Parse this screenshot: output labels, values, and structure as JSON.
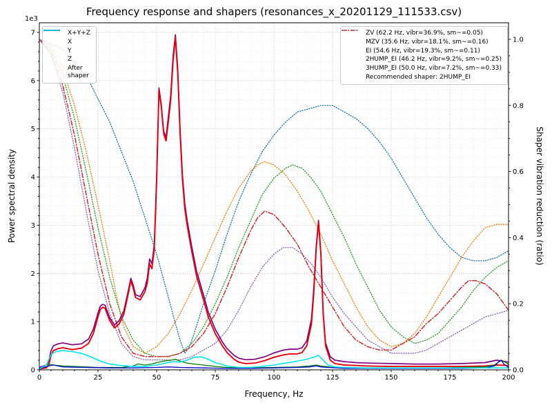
{
  "chart_data": {
    "type": "line",
    "title": "Frequency response and shapers (resonances_x_20201129_111533.csv)",
    "xlabel": "Frequency, Hz",
    "ylabel_left": "Power spectral density",
    "ylabel_right": "Shaper vibration reduction (ratio)",
    "y_left_offset_text": "1e3",
    "x_range": [
      0,
      200
    ],
    "y_left_display_max": 7,
    "y_left_scale_max": 7.2,
    "y_right_display_max": 1.0,
    "y_right_scale_max": 1.05,
    "x_ticks": [
      0,
      25,
      50,
      75,
      100,
      125,
      150,
      175,
      200
    ],
    "y_left_ticks": [
      0,
      1,
      2,
      3,
      4,
      5,
      6,
      7
    ],
    "y_right_ticks": [
      0.0,
      0.2,
      0.4,
      0.6,
      0.8,
      1.0
    ],
    "grid": true,
    "legend_left_position": "upper left",
    "legend_right_position": "upper right",
    "recommended_shaper": "2HUMP_EI",
    "legend_note": "Recommended shaper: 2HUMP_EI",
    "psd_units": "1e3",
    "psd_series": [
      {
        "name": "sum",
        "label": "X+Y+Z",
        "color": "#800080",
        "style": "solid",
        "width": 1.7,
        "axis": "left",
        "x": [
          0,
          3,
          4,
          5,
          6,
          8,
          10,
          14,
          18,
          21,
          23,
          25,
          26,
          27,
          28,
          30,
          32,
          34,
          36,
          38,
          39,
          40,
          41,
          43,
          45,
          46,
          47,
          48,
          49,
          50,
          51,
          52,
          53,
          54,
          55,
          56,
          57,
          58,
          59,
          60,
          61,
          62,
          63,
          65,
          67,
          70,
          72,
          75,
          78,
          80,
          83,
          85,
          88,
          92,
          96,
          100,
          104,
          107,
          110,
          112,
          114,
          116,
          117,
          118,
          119,
          120,
          121,
          122,
          124,
          126,
          130,
          135,
          140,
          150,
          160,
          170,
          180,
          190,
          195,
          200
        ],
        "y": [
          0.05,
          0.1,
          0.18,
          0.4,
          0.5,
          0.54,
          0.56,
          0.52,
          0.54,
          0.64,
          0.84,
          1.18,
          1.32,
          1.36,
          1.34,
          1.08,
          0.93,
          1.02,
          1.22,
          1.66,
          1.9,
          1.76,
          1.56,
          1.52,
          1.7,
          1.9,
          2.3,
          2.2,
          2.6,
          4.0,
          5.85,
          5.5,
          4.95,
          4.82,
          5.25,
          5.7,
          6.5,
          6.95,
          6.25,
          5.0,
          4.05,
          3.45,
          3.1,
          2.55,
          2.05,
          1.55,
          1.2,
          0.84,
          0.58,
          0.44,
          0.3,
          0.24,
          0.21,
          0.22,
          0.27,
          0.35,
          0.41,
          0.43,
          0.43,
          0.46,
          0.6,
          1.05,
          1.7,
          2.55,
          3.1,
          2.45,
          1.2,
          0.56,
          0.27,
          0.2,
          0.17,
          0.15,
          0.14,
          0.13,
          0.12,
          0.12,
          0.13,
          0.15,
          0.2,
          0.16
        ]
      },
      {
        "name": "x",
        "label": "X",
        "color": "#e8000b",
        "style": "solid",
        "width": 1.9,
        "axis": "left",
        "x": [
          0,
          3,
          4,
          5,
          6,
          8,
          10,
          14,
          18,
          21,
          23,
          25,
          26,
          27,
          28,
          30,
          32,
          34,
          36,
          38,
          39,
          40,
          41,
          43,
          45,
          46,
          47,
          48,
          49,
          50,
          51,
          52,
          53,
          54,
          55,
          56,
          57,
          58,
          59,
          60,
          61,
          62,
          63,
          65,
          67,
          70,
          72,
          75,
          78,
          80,
          83,
          85,
          88,
          92,
          96,
          100,
          104,
          107,
          110,
          112,
          114,
          116,
          117,
          118,
          119,
          120,
          121,
          122,
          124,
          126,
          130,
          135,
          140,
          150,
          160,
          170,
          180,
          190,
          195,
          200
        ],
        "y": [
          0.02,
          0.04,
          0.1,
          0.3,
          0.4,
          0.44,
          0.46,
          0.42,
          0.45,
          0.55,
          0.75,
          1.1,
          1.25,
          1.3,
          1.28,
          1.02,
          0.87,
          0.95,
          1.15,
          1.6,
          1.85,
          1.7,
          1.5,
          1.45,
          1.62,
          1.8,
          2.2,
          2.1,
          2.5,
          3.9,
          5.8,
          5.45,
          4.9,
          4.75,
          5.15,
          5.6,
          6.4,
          6.9,
          6.15,
          4.9,
          3.95,
          3.35,
          3.0,
          2.45,
          1.95,
          1.45,
          1.1,
          0.75,
          0.5,
          0.36,
          0.22,
          0.16,
          0.13,
          0.14,
          0.19,
          0.26,
          0.31,
          0.33,
          0.33,
          0.36,
          0.5,
          0.95,
          1.6,
          2.5,
          3.05,
          2.4,
          1.15,
          0.5,
          0.2,
          0.13,
          0.1,
          0.09,
          0.08,
          0.07,
          0.07,
          0.07,
          0.07,
          0.08,
          0.1,
          0.09
        ]
      },
      {
        "name": "y",
        "label": "Y",
        "color": "#008000",
        "style": "solid",
        "width": 1.3,
        "axis": "left",
        "x": [
          0,
          4,
          6,
          10,
          15,
          20,
          25,
          30,
          35,
          40,
          42,
          45,
          48,
          50,
          53,
          56,
          58,
          60,
          63,
          66,
          70,
          75,
          80,
          90,
          100,
          110,
          115,
          118,
          120,
          125,
          130,
          140,
          150,
          160,
          170,
          180,
          190,
          194,
          197,
          200
        ],
        "y": [
          0.02,
          0.12,
          0.1,
          0.08,
          0.07,
          0.06,
          0.05,
          0.05,
          0.05,
          0.08,
          0.12,
          0.1,
          0.12,
          0.15,
          0.18,
          0.2,
          0.22,
          0.18,
          0.14,
          0.12,
          0.1,
          0.07,
          0.05,
          0.04,
          0.05,
          0.06,
          0.08,
          0.1,
          0.08,
          0.05,
          0.04,
          0.04,
          0.04,
          0.04,
          0.04,
          0.05,
          0.06,
          0.1,
          0.2,
          0.12
        ]
      },
      {
        "name": "z",
        "label": "Z",
        "color": "#0000cd",
        "style": "solid",
        "width": 1.3,
        "axis": "left",
        "x": [
          0,
          4,
          6,
          10,
          20,
          30,
          40,
          50,
          55,
          60,
          70,
          80,
          90,
          100,
          110,
          115,
          118,
          120,
          130,
          140,
          150,
          160,
          170,
          180,
          190,
          194,
          196,
          197,
          198,
          200
        ],
        "y": [
          0.02,
          0.08,
          0.1,
          0.06,
          0.05,
          0.04,
          0.04,
          0.05,
          0.06,
          0.05,
          0.04,
          0.03,
          0.03,
          0.04,
          0.05,
          0.06,
          0.08,
          0.06,
          0.03,
          0.03,
          0.03,
          0.03,
          0.03,
          0.03,
          0.04,
          0.08,
          0.18,
          0.2,
          0.12,
          0.05
        ]
      },
      {
        "name": "after-shaper",
        "label": "After\nshaper",
        "color": "#00e5ee",
        "style": "solid",
        "width": 1.6,
        "axis": "left",
        "x": [
          0,
          3,
          5,
          7,
          10,
          14,
          18,
          22,
          26,
          30,
          35,
          40,
          45,
          50,
          54,
          57,
          60,
          63,
          66,
          69,
          72,
          75,
          80,
          85,
          90,
          95,
          100,
          105,
          110,
          114,
          117,
          119,
          121,
          123,
          126,
          130,
          140,
          150,
          160,
          170,
          180,
          190,
          200
        ],
        "y": [
          0.02,
          0.1,
          0.32,
          0.38,
          0.4,
          0.38,
          0.34,
          0.27,
          0.18,
          0.12,
          0.09,
          0.07,
          0.07,
          0.1,
          0.14,
          0.17,
          0.16,
          0.2,
          0.26,
          0.27,
          0.22,
          0.15,
          0.08,
          0.05,
          0.05,
          0.07,
          0.1,
          0.14,
          0.18,
          0.22,
          0.26,
          0.3,
          0.2,
          0.1,
          0.06,
          0.05,
          0.04,
          0.04,
          0.04,
          0.04,
          0.04,
          0.04,
          0.04
        ]
      }
    ],
    "shaper_series": [
      {
        "name": "zv",
        "label": "ZV (62.2 Hz, vibr=36.9%, sm~=0.05)",
        "freq_hz": 62.2,
        "vibr_pct": 36.9,
        "smoothing": 0.05,
        "color": "#1f77b4",
        "style": "dotted",
        "width": 1.4,
        "axis": "right",
        "x": [
          0,
          10,
          20,
          30,
          40,
          45,
          50,
          55,
          58,
          60,
          62,
          64,
          66,
          70,
          75,
          80,
          85,
          90,
          95,
          100,
          105,
          110,
          115,
          120,
          125,
          130,
          135,
          140,
          145,
          150,
          155,
          160,
          165,
          170,
          175,
          180,
          185,
          190,
          195,
          200
        ],
        "y": [
          1.0,
          0.97,
          0.89,
          0.75,
          0.57,
          0.46,
          0.35,
          0.22,
          0.14,
          0.09,
          0.05,
          0.07,
          0.11,
          0.2,
          0.3,
          0.41,
          0.51,
          0.59,
          0.66,
          0.71,
          0.75,
          0.78,
          0.79,
          0.8,
          0.8,
          0.78,
          0.76,
          0.73,
          0.69,
          0.64,
          0.58,
          0.52,
          0.46,
          0.41,
          0.37,
          0.34,
          0.33,
          0.33,
          0.34,
          0.36
        ]
      },
      {
        "name": "mzv",
        "label": "MZV (35.6 Hz, vibr=18.1%, sm~=0.16)",
        "freq_hz": 35.6,
        "vibr_pct": 18.1,
        "smoothing": 0.16,
        "color": "#ff7f0e",
        "style": "dotted",
        "width": 1.4,
        "axis": "right",
        "x": [
          0,
          5,
          10,
          15,
          20,
          25,
          30,
          33,
          36,
          40,
          45,
          50,
          55,
          60,
          65,
          70,
          75,
          80,
          85,
          90,
          93,
          96,
          100,
          105,
          110,
          115,
          120,
          125,
          130,
          135,
          140,
          145,
          150,
          155,
          160,
          165,
          170,
          175,
          180,
          185,
          190,
          195,
          200
        ],
        "y": [
          1.0,
          0.98,
          0.91,
          0.8,
          0.66,
          0.5,
          0.33,
          0.22,
          0.13,
          0.07,
          0.05,
          0.07,
          0.11,
          0.17,
          0.24,
          0.32,
          0.4,
          0.48,
          0.55,
          0.6,
          0.62,
          0.63,
          0.62,
          0.59,
          0.54,
          0.48,
          0.41,
          0.33,
          0.26,
          0.19,
          0.13,
          0.09,
          0.07,
          0.08,
          0.11,
          0.16,
          0.22,
          0.28,
          0.34,
          0.39,
          0.43,
          0.44,
          0.44
        ]
      },
      {
        "name": "ei",
        "label": "EI (54.6 Hz, vibr=19.3%, sm~=0.11)",
        "freq_hz": 54.6,
        "vibr_pct": 19.3,
        "smoothing": 0.11,
        "color": "#2ca02c",
        "style": "dotted",
        "width": 1.4,
        "axis": "right",
        "x": [
          0,
          5,
          10,
          15,
          20,
          25,
          30,
          35,
          40,
          45,
          50,
          55,
          60,
          65,
          70,
          75,
          80,
          85,
          90,
          95,
          100,
          105,
          108,
          112,
          116,
          120,
          125,
          130,
          135,
          140,
          145,
          150,
          155,
          160,
          165,
          170,
          175,
          180,
          185,
          190,
          195,
          200
        ],
        "y": [
          1.0,
          0.97,
          0.89,
          0.76,
          0.6,
          0.43,
          0.28,
          0.16,
          0.09,
          0.05,
          0.04,
          0.04,
          0.05,
          0.08,
          0.13,
          0.2,
          0.28,
          0.37,
          0.45,
          0.53,
          0.58,
          0.61,
          0.62,
          0.61,
          0.58,
          0.54,
          0.47,
          0.4,
          0.32,
          0.25,
          0.18,
          0.13,
          0.1,
          0.08,
          0.09,
          0.11,
          0.15,
          0.19,
          0.24,
          0.28,
          0.31,
          0.33
        ]
      },
      {
        "name": "2hump-ei",
        "label": "2HUMP_EI (46.2 Hz, vibr=9.2%, sm~=0.25)",
        "freq_hz": 46.2,
        "vibr_pct": 9.2,
        "smoothing": 0.25,
        "color": "#d62728",
        "style": "dashdot",
        "width": 1.5,
        "axis": "right",
        "x": [
          0,
          5,
          10,
          15,
          20,
          25,
          30,
          35,
          40,
          45,
          50,
          55,
          60,
          65,
          70,
          75,
          80,
          85,
          90,
          93,
          96,
          100,
          105,
          110,
          115,
          120,
          125,
          130,
          135,
          140,
          145,
          150,
          155,
          160,
          165,
          170,
          175,
          180,
          183,
          186,
          190,
          195,
          200
        ],
        "y": [
          1.0,
          0.96,
          0.86,
          0.71,
          0.53,
          0.35,
          0.2,
          0.1,
          0.05,
          0.04,
          0.04,
          0.04,
          0.05,
          0.07,
          0.11,
          0.17,
          0.25,
          0.34,
          0.42,
          0.46,
          0.48,
          0.47,
          0.43,
          0.38,
          0.31,
          0.25,
          0.19,
          0.13,
          0.09,
          0.07,
          0.06,
          0.06,
          0.08,
          0.1,
          0.14,
          0.17,
          0.21,
          0.25,
          0.27,
          0.27,
          0.26,
          0.23,
          0.18
        ]
      },
      {
        "name": "3hump-ei",
        "label": "3HUMP_EI (50.0 Hz, vibr=7.2%, sm~=0.33)",
        "freq_hz": 50.0,
        "vibr_pct": 7.2,
        "smoothing": 0.33,
        "color": "#9467bd",
        "style": "dotted",
        "width": 1.4,
        "axis": "right",
        "x": [
          0,
          5,
          10,
          15,
          20,
          25,
          30,
          35,
          40,
          45,
          50,
          55,
          60,
          65,
          70,
          75,
          80,
          85,
          90,
          95,
          100,
          104,
          108,
          112,
          116,
          120,
          125,
          130,
          135,
          140,
          145,
          150,
          155,
          160,
          165,
          170,
          175,
          180,
          185,
          190,
          195,
          200
        ],
        "y": [
          1.0,
          0.95,
          0.84,
          0.67,
          0.48,
          0.3,
          0.17,
          0.08,
          0.04,
          0.03,
          0.03,
          0.03,
          0.03,
          0.04,
          0.06,
          0.08,
          0.12,
          0.18,
          0.25,
          0.31,
          0.35,
          0.37,
          0.37,
          0.35,
          0.32,
          0.28,
          0.22,
          0.17,
          0.13,
          0.09,
          0.07,
          0.05,
          0.05,
          0.05,
          0.06,
          0.08,
          0.1,
          0.12,
          0.14,
          0.16,
          0.17,
          0.18
        ]
      }
    ]
  }
}
